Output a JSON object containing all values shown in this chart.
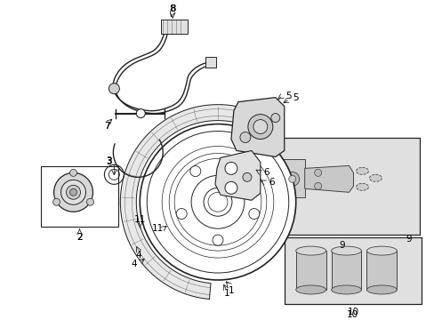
{
  "background_color": "#ffffff",
  "figure_width": 4.89,
  "figure_height": 3.6,
  "dpi": 100,
  "line_color": "#222222",
  "light_gray": "#e0e0e0",
  "mid_gray": "#aaaaaa",
  "dark_gray": "#444444"
}
